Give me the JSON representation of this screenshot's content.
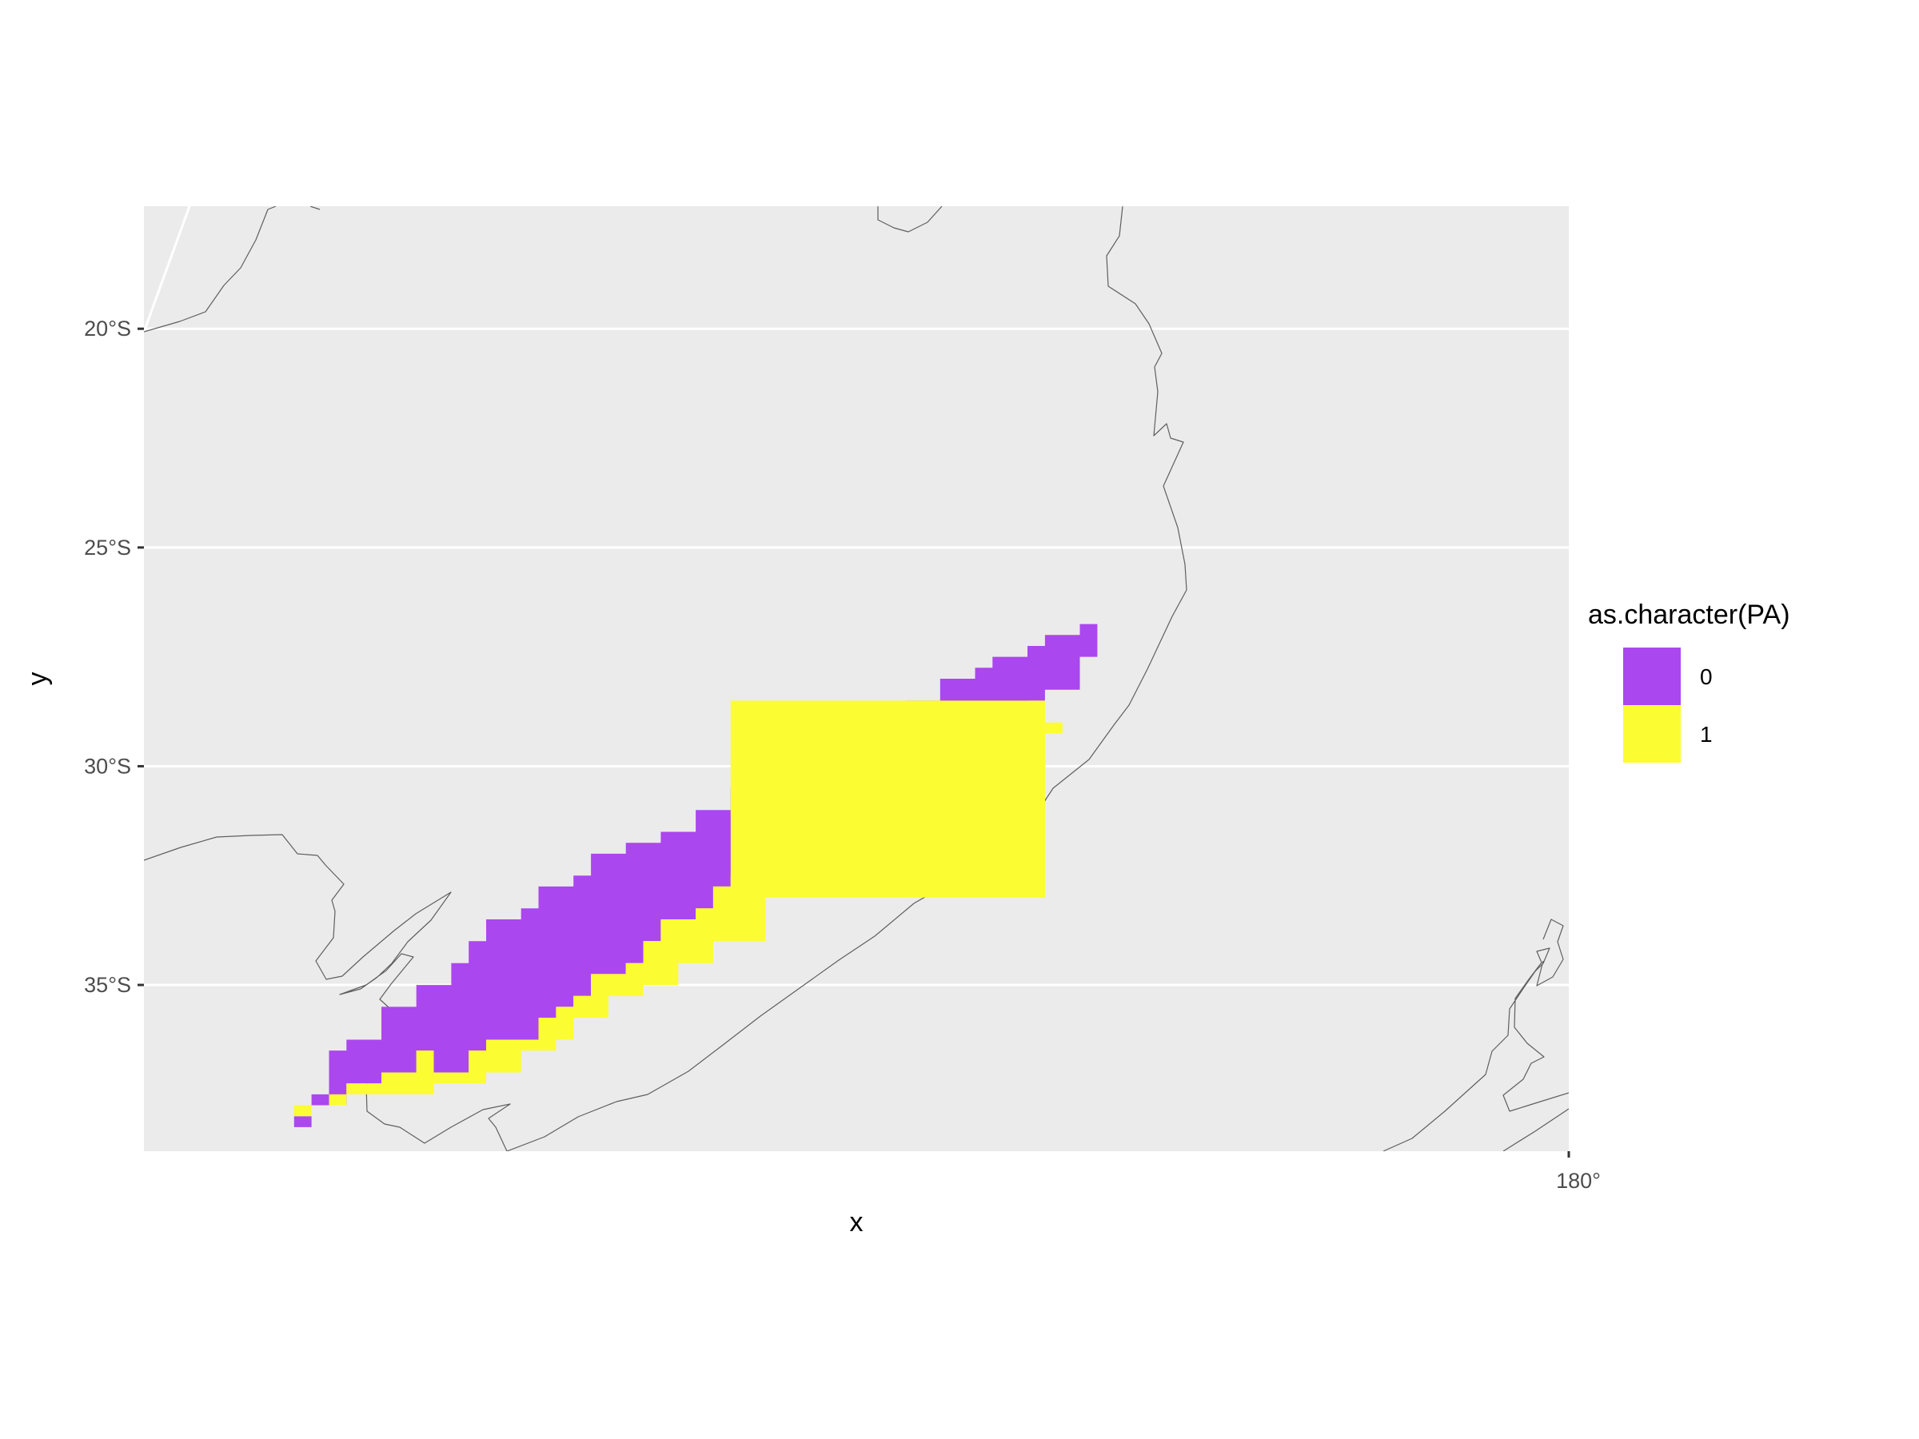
{
  "colors": {
    "panel_background": "#EBEBEB",
    "gridline": "#FFFFFF",
    "coastline": "#5F5F5F",
    "absence": "#AB47EE",
    "presence": "#FCFC33",
    "tick_label": "#4D4D4D"
  },
  "chart_data": {
    "type": "heatmap",
    "xlabel": "x",
    "ylabel": "y",
    "x_ticks": [
      {
        "value": 180,
        "label": "180°"
      }
    ],
    "y_ticks": [
      {
        "value": -20,
        "label": "20°S"
      },
      {
        "value": -25,
        "label": "25°S"
      },
      {
        "value": -30,
        "label": "30°S"
      },
      {
        "value": -35,
        "label": "35°S"
      }
    ],
    "xlim": [
      159.6,
      180.0
    ],
    "ylim": [
      -38.8,
      -17.2
    ],
    "grid": true,
    "legend": {
      "title": "as.character(PA)",
      "position": "right",
      "entries": [
        {
          "label": "0",
          "color": "#AB47EE"
        },
        {
          "label": "1",
          "color": "#FCFC33"
        }
      ]
    },
    "cell_size_deg": 0.25,
    "series": [
      {
        "value": "0",
        "polygon": [
          [
            173.0,
            -26.65
          ],
          [
            173.25,
            -26.65
          ],
          [
            173.35,
            -26.95
          ],
          [
            173.2,
            -27.4
          ],
          [
            172.9,
            -28.2
          ],
          [
            172.5,
            -28.5
          ],
          [
            172.2,
            -28.9
          ],
          [
            171.9,
            -29.0
          ],
          [
            171.6,
            -29.3
          ],
          [
            171.2,
            -29.6
          ],
          [
            170.8,
            -30.0
          ],
          [
            170.5,
            -30.6
          ],
          [
            170.1,
            -31.0
          ],
          [
            169.9,
            -31.5
          ],
          [
            169.6,
            -31.8
          ],
          [
            169.2,
            -32.1
          ],
          [
            168.7,
            -32.6
          ],
          [
            168.1,
            -32.7
          ],
          [
            167.7,
            -33.3
          ],
          [
            167.5,
            -33.5
          ],
          [
            167.1,
            -33.9
          ],
          [
            166.8,
            -34.4
          ],
          [
            166.5,
            -34.8
          ],
          [
            166.1,
            -35.2
          ],
          [
            165.7,
            -35.4
          ],
          [
            165.5,
            -35.8
          ],
          [
            165.2,
            -36.2
          ],
          [
            164.6,
            -36.5
          ],
          [
            164.3,
            -36.9
          ],
          [
            163.8,
            -36.6
          ],
          [
            163.4,
            -36.9
          ],
          [
            163.0,
            -37.2
          ],
          [
            162.6,
            -37.5
          ],
          [
            162.4,
            -37.7
          ],
          [
            162.2,
            -37.8
          ],
          [
            162.1,
            -38.0
          ],
          [
            162.0,
            -38.2
          ],
          [
            161.7,
            -38.25
          ],
          [
            161.7,
            -37.9
          ],
          [
            162.1,
            -37.5
          ],
          [
            162.3,
            -37.0
          ],
          [
            162.3,
            -36.6
          ],
          [
            162.6,
            -36.3
          ],
          [
            162.9,
            -36.0
          ],
          [
            163.1,
            -35.6
          ],
          [
            163.4,
            -35.3
          ],
          [
            163.6,
            -34.9
          ],
          [
            164.0,
            -34.4
          ],
          [
            164.3,
            -34.1
          ],
          [
            164.6,
            -33.6
          ],
          [
            164.9,
            -33.3
          ],
          [
            165.3,
            -32.8
          ],
          [
            165.7,
            -32.4
          ],
          [
            166.1,
            -32.1
          ],
          [
            166.5,
            -31.7
          ],
          [
            167.0,
            -31.4
          ],
          [
            167.5,
            -31.0
          ],
          [
            167.9,
            -30.6
          ],
          [
            168.4,
            -30.3
          ],
          [
            168.8,
            -29.9
          ],
          [
            169.2,
            -29.6
          ],
          [
            169.7,
            -29.1
          ],
          [
            170.1,
            -28.8
          ],
          [
            170.6,
            -28.4
          ],
          [
            171.0,
            -28.1
          ],
          [
            171.4,
            -27.8
          ],
          [
            171.8,
            -27.5
          ],
          [
            172.2,
            -27.2
          ],
          [
            172.6,
            -26.9
          ]
        ]
      },
      {
        "value": "1",
        "polygon": [
          [
            172.5,
            -28.5
          ],
          [
            172.2,
            -28.9
          ],
          [
            171.9,
            -29.0
          ],
          [
            171.6,
            -29.3
          ],
          [
            171.2,
            -29.6
          ],
          [
            170.8,
            -30.0
          ],
          [
            170.5,
            -30.6
          ],
          [
            170.1,
            -31.0
          ],
          [
            169.9,
            -31.5
          ],
          [
            169.6,
            -31.8
          ],
          [
            169.2,
            -32.1
          ],
          [
            168.9,
            -32.3
          ],
          [
            169.5,
            -32.2
          ],
          [
            170.1,
            -31.5
          ],
          [
            170.6,
            -31.1
          ],
          [
            171.0,
            -30.6
          ],
          [
            171.5,
            -30.1
          ],
          [
            172.0,
            -29.6
          ],
          [
            172.4,
            -29.2
          ],
          [
            172.7,
            -28.9
          ],
          [
            172.6,
            -28.6
          ],
          [
            168.1,
            -32.7
          ],
          [
            167.7,
            -33.3
          ],
          [
            167.5,
            -33.5
          ],
          [
            167.1,
            -33.9
          ],
          [
            166.8,
            -34.4
          ],
          [
            166.5,
            -34.8
          ],
          [
            166.1,
            -35.2
          ],
          [
            165.7,
            -35.4
          ],
          [
            165.5,
            -35.8
          ],
          [
            165.2,
            -36.2
          ],
          [
            164.6,
            -36.5
          ],
          [
            164.3,
            -36.9
          ],
          [
            163.8,
            -36.6
          ],
          [
            163.4,
            -36.9
          ],
          [
            163.0,
            -37.2
          ],
          [
            162.6,
            -37.5
          ],
          [
            162.4,
            -37.7
          ],
          [
            162.2,
            -37.8
          ],
          [
            162.1,
            -38.0
          ],
          [
            161.7,
            -38.0
          ],
          [
            161.7,
            -37.7
          ],
          [
            162.3,
            -37.5
          ],
          [
            163.0,
            -37.4
          ],
          [
            163.7,
            -37.2
          ],
          [
            164.4,
            -36.9
          ],
          [
            165.0,
            -36.6
          ],
          [
            165.4,
            -36.2
          ],
          [
            165.8,
            -35.8
          ],
          [
            166.2,
            -35.3
          ],
          [
            166.7,
            -34.9
          ],
          [
            167.2,
            -34.4
          ],
          [
            167.8,
            -33.9
          ],
          [
            168.4,
            -33.4
          ],
          [
            168.6,
            -33.0
          ]
        ]
      }
    ]
  }
}
